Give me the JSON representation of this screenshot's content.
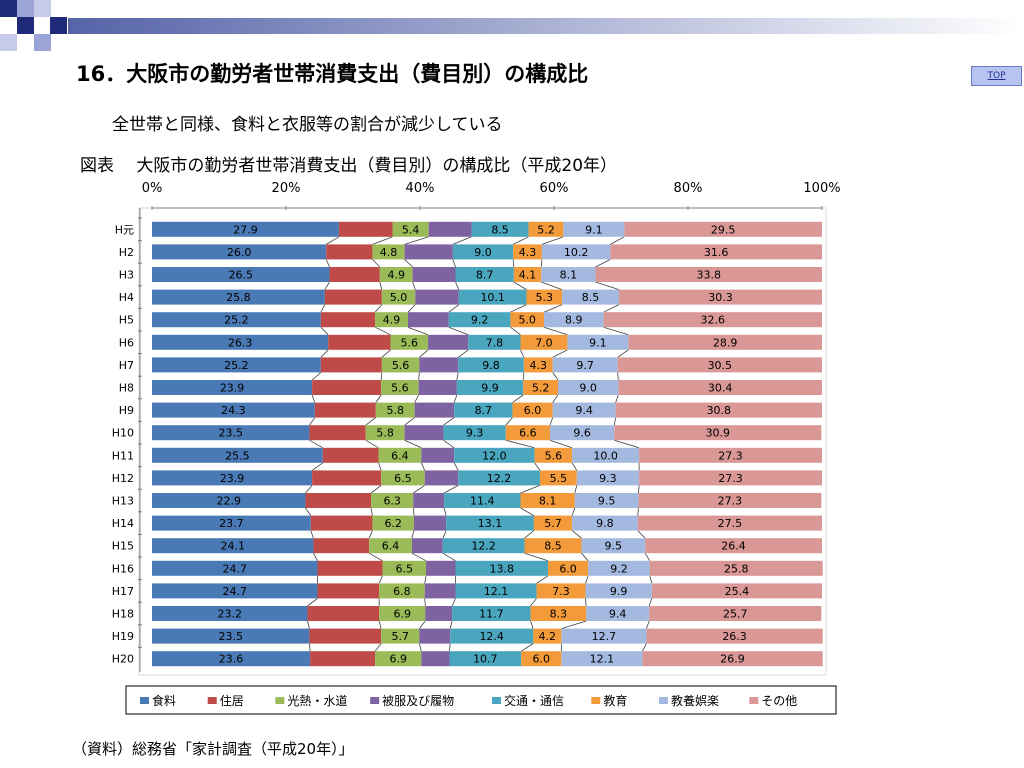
{
  "header": {
    "title": "16．大阪市の勤労者世帯消費支出（費目別）の構成比",
    "top_link": "TOP",
    "subtitle": "全世帯と同様、食料と衣服等の割合が減少している",
    "figure_title": "図表　 大阪市の勤労者世帯消費支出（費目別）の構成比（平成20年）"
  },
  "footer": {
    "source": "（資料）総務省「家計調査（平成20年）」"
  },
  "colors": {
    "deco_dark": "#1f2a78",
    "deco_light": "#9aa4d6",
    "gradient_start": "#5563a8"
  },
  "chart_data": {
    "type": "bar",
    "orientation": "horizontal",
    "stacked": "percent",
    "title": "大阪市の勤労者世帯消費支出（費目別）の構成比（平成20年）",
    "categories": [
      "H元",
      "H2",
      "H3",
      "H4",
      "H5",
      "H6",
      "H7",
      "H8",
      "H9",
      "H10",
      "H11",
      "H12",
      "H13",
      "H14",
      "H15",
      "H16",
      "H17",
      "H18",
      "H19",
      "H20"
    ],
    "x_tick_labels": [
      "0%",
      "20%",
      "40%",
      "60%",
      "80%",
      "100%"
    ],
    "xlim": [
      0,
      100
    ],
    "legend_position": "bottom",
    "series": [
      {
        "name": "食料",
        "color": "#4a7ab5",
        "values": [
          27.9,
          26.0,
          26.5,
          25.8,
          25.2,
          26.3,
          25.2,
          23.9,
          24.3,
          23.5,
          25.5,
          23.9,
          22.9,
          23.7,
          24.1,
          24.7,
          24.7,
          23.2,
          23.5,
          23.6
        ]
      },
      {
        "name": "住居",
        "color": "#bf4b48",
        "values": [
          8.0,
          6.9,
          7.5,
          8.5,
          8.1,
          9.3,
          9.1,
          10.3,
          9.1,
          8.4,
          8.3,
          10.3,
          9.8,
          9.2,
          8.3,
          9.7,
          9.2,
          10.7,
          10.7,
          9.7
        ]
      },
      {
        "name": "光熱・水道",
        "color": "#9bbb59",
        "values": [
          5.4,
          4.8,
          4.9,
          5.0,
          4.9,
          5.6,
          5.6,
          5.6,
          5.8,
          5.8,
          6.4,
          6.5,
          6.3,
          6.2,
          6.4,
          6.5,
          6.8,
          6.9,
          5.7,
          6.9
        ]
      },
      {
        "name": "被服及び履物",
        "color": "#7e62a1",
        "values": [
          6.4,
          7.2,
          6.4,
          6.5,
          6.1,
          6.0,
          5.8,
          5.7,
          5.9,
          5.8,
          4.9,
          5.0,
          4.6,
          4.8,
          4.6,
          4.4,
          4.6,
          4.0,
          4.6,
          4.2
        ]
      },
      {
        "name": "交通・通信",
        "color": "#4aa5be",
        "values": [
          8.5,
          9.0,
          8.7,
          10.1,
          9.2,
          7.8,
          9.8,
          9.9,
          8.7,
          9.3,
          12.0,
          12.2,
          11.4,
          13.1,
          12.2,
          13.8,
          12.1,
          11.7,
          12.4,
          10.7
        ]
      },
      {
        "name": "教育",
        "color": "#f39a3a",
        "values": [
          5.2,
          4.3,
          4.1,
          5.3,
          5.0,
          7.0,
          4.3,
          5.2,
          6.0,
          6.6,
          5.6,
          5.5,
          8.1,
          5.7,
          8.5,
          6.0,
          7.3,
          8.3,
          4.2,
          6.0
        ]
      },
      {
        "name": "教養娯楽",
        "color": "#a3b9df",
        "values": [
          9.1,
          10.2,
          8.1,
          8.5,
          8.9,
          9.1,
          9.7,
          9.0,
          9.4,
          9.6,
          10.0,
          9.3,
          9.5,
          9.8,
          9.5,
          9.2,
          9.9,
          9.4,
          12.7,
          12.1
        ]
      },
      {
        "name": "その他",
        "color": "#d99795",
        "values": [
          29.5,
          31.6,
          33.8,
          30.3,
          32.6,
          28.9,
          30.5,
          30.4,
          30.8,
          30.9,
          27.3,
          27.3,
          27.3,
          27.5,
          26.4,
          25.8,
          25.4,
          25.7,
          26.3,
          26.9
        ]
      }
    ]
  }
}
